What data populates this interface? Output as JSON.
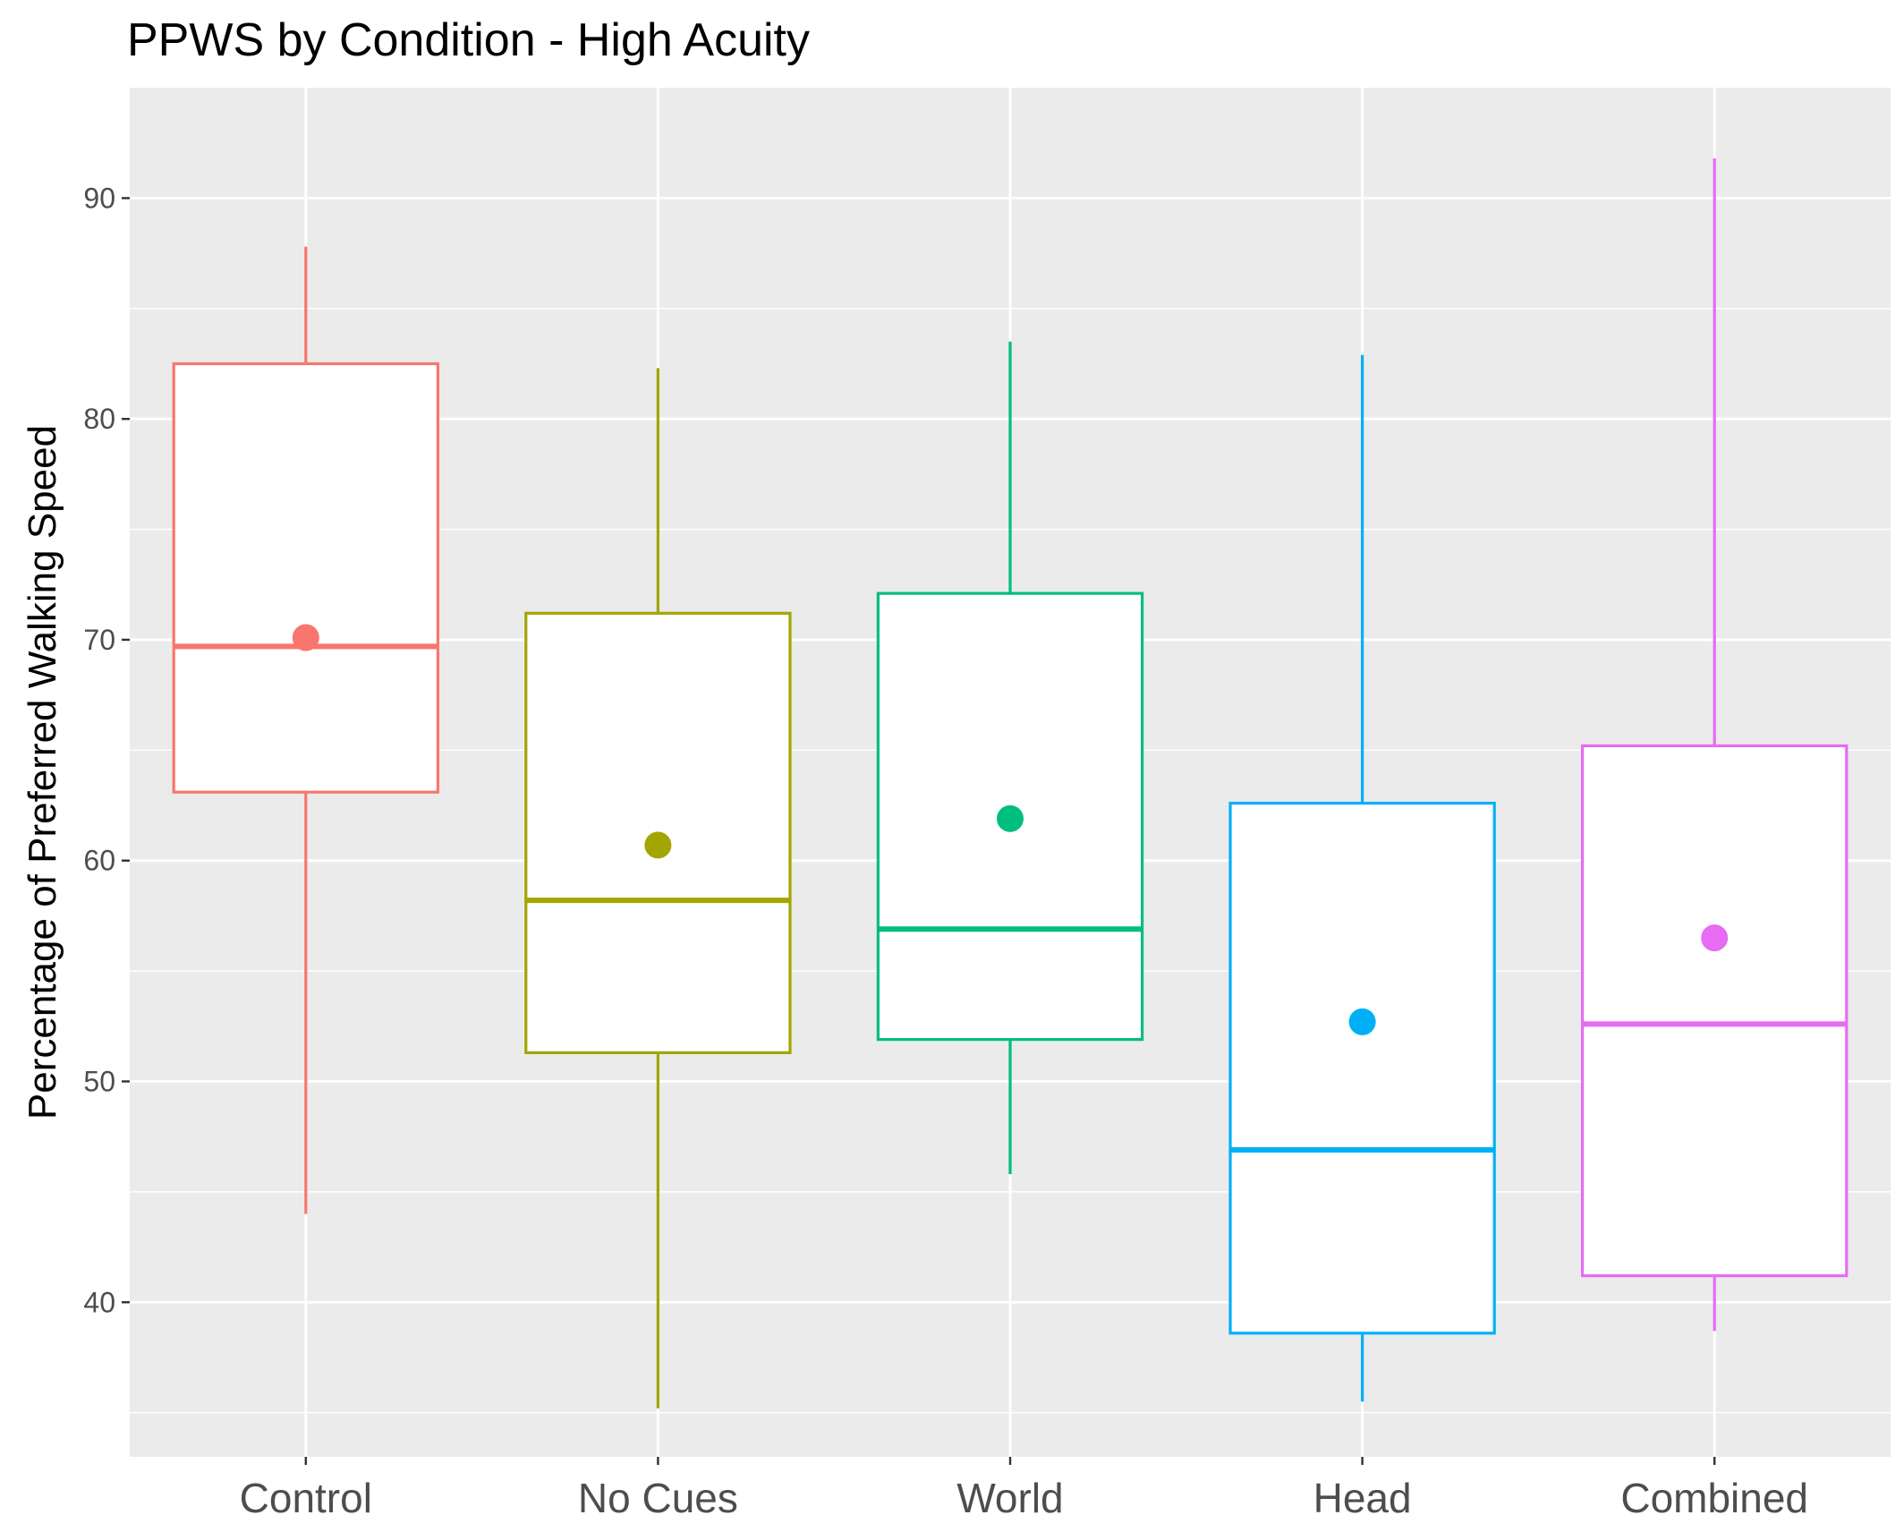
{
  "chart_data": {
    "type": "box",
    "title": "PPWS by Condition - High Acuity",
    "xlabel": "",
    "ylabel": "Percentage of Preferred Walking Speed",
    "ylim": [
      33,
      95
    ],
    "yticks": [
      40,
      50,
      60,
      70,
      80,
      90
    ],
    "grid": true,
    "legend": "none",
    "categories": [
      "Control",
      "No Cues",
      "World",
      "Head",
      "Combined"
    ],
    "colors": [
      "#F8766D",
      "#A3A500",
      "#00BF7D",
      "#00B0F6",
      "#E76BF3"
    ],
    "boxes": [
      {
        "category": "Control",
        "whisker_low": 44.0,
        "q1": 63.1,
        "median": 69.7,
        "q3": 82.5,
        "whisker_high": 87.8,
        "mean": 70.1
      },
      {
        "category": "No Cues",
        "whisker_low": 35.2,
        "q1": 51.3,
        "median": 58.2,
        "q3": 71.2,
        "whisker_high": 82.3,
        "mean": 60.7
      },
      {
        "category": "World",
        "whisker_low": 45.8,
        "q1": 51.9,
        "median": 56.9,
        "q3": 72.1,
        "whisker_high": 83.5,
        "mean": 61.9
      },
      {
        "category": "Head",
        "whisker_low": 35.5,
        "q1": 38.6,
        "median": 46.9,
        "q3": 62.6,
        "whisker_high": 82.9,
        "mean": 52.7
      },
      {
        "category": "Combined",
        "whisker_low": 38.7,
        "q1": 41.2,
        "median": 52.6,
        "q3": 65.2,
        "whisker_high": 91.8,
        "mean": 56.5
      }
    ]
  }
}
